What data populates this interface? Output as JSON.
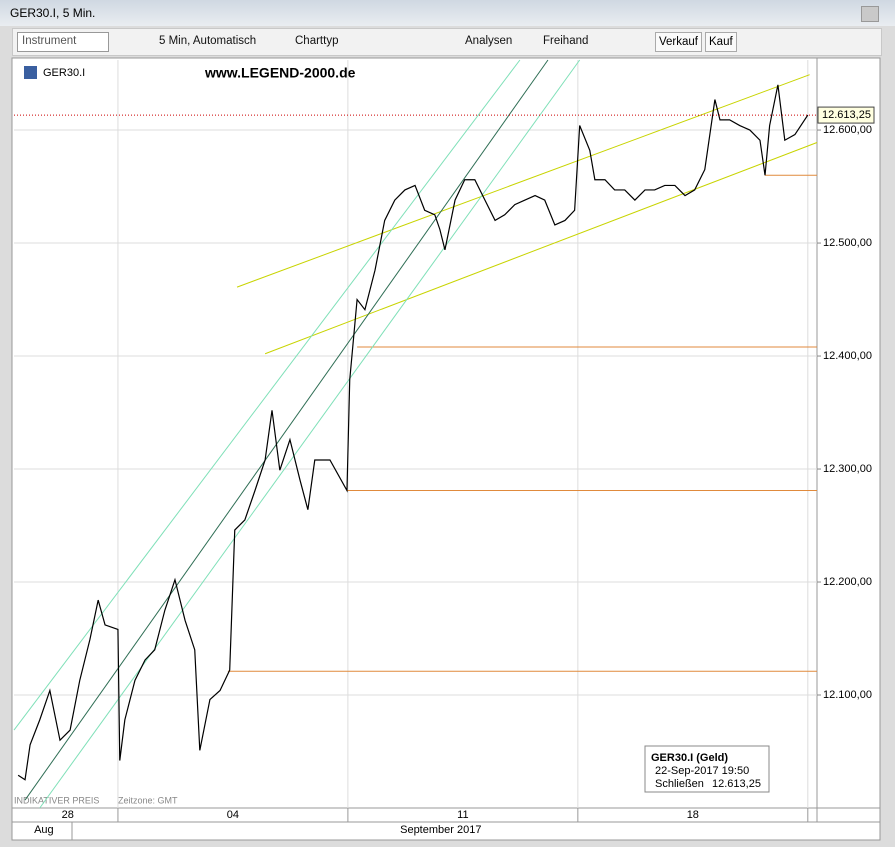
{
  "window": {
    "title": "GER30.I, 5 Min."
  },
  "toolbar": {
    "instrument_placeholder": "Instrument",
    "interval": "5 Min, Automatisch",
    "chart_type": "Charttyp",
    "analyses": "Analysen",
    "freehand": "Freihand",
    "sell": "Verkauf",
    "buy": "Kauf"
  },
  "chart_data": {
    "type": "line",
    "title": "www.LEGEND-2000.de",
    "x": [
      -2.17,
      -2.02,
      -1.91,
      -1.7,
      -1.48,
      -1.26,
      -1.04,
      -0.83,
      -0.61,
      -0.43,
      -0.28,
      0,
      0.04,
      0.15,
      0.37,
      0.59,
      0.8,
      1.02,
      1.24,
      1.46,
      1.67,
      1.78,
      2,
      2.22,
      2.43,
      2.54,
      2.76,
      2.98,
      3.2,
      3.35,
      3.52,
      3.74,
      3.96,
      4.13,
      4.28,
      4.61,
      4.98,
      5.04,
      5.2,
      5.37,
      5.59,
      5.8,
      6.02,
      6.24,
      6.46,
      6.67,
      6.89,
      7,
      7.11,
      7.33,
      7.54,
      7.76,
      7.98,
      8.2,
      8.41,
      8.63,
      8.85,
      9.07,
      9.28,
      9.5,
      9.72,
      9.93,
      10.04,
      10.26,
      10.37,
      10.59,
      10.8,
      11.02,
      11.24,
      11.46,
      11.67,
      11.89,
      12.11,
      12.33,
      12.54,
      12.76,
      12.98,
      13.09,
      13.3,
      13.52,
      13.74,
      13.96,
      14.07,
      14.17,
      14.35,
      14.5,
      14.72,
      15
    ],
    "series": [
      {
        "name": "GER30.I",
        "color": "#000000",
        "values": [
          12029,
          12025,
          12056,
          12078,
          12104,
          12060,
          12069,
          12113,
          12149,
          12184,
          12162,
          12158,
          12042,
          12078,
          12113,
          12131,
          12140,
          12175,
          12202,
          12166,
          12140,
          12051,
          12096,
          12104,
          12122,
          12246,
          12255,
          12281,
          12308,
          12352,
          12299,
          12326,
          12290,
          12264,
          12308,
          12308,
          12281,
          12379,
          12450,
          12441,
          12476,
          12520,
          12538,
          12547,
          12551,
          12529,
          12525,
          12512,
          12494,
          12538,
          12556,
          12556,
          12538,
          12520,
          12525,
          12534,
          12538,
          12542,
          12538,
          12516,
          12520,
          12529,
          12604,
          12582,
          12556,
          12556,
          12547,
          12547,
          12538,
          12547,
          12547,
          12551,
          12551,
          12542,
          12547,
          12565,
          12627,
          12609,
          12609,
          12604,
          12600,
          12591,
          12560,
          12604,
          12640,
          12591,
          12596,
          12613.25
        ]
      }
    ],
    "last_price_label": "12.613,25",
    "xlim": [
      -2.26,
      15.2
    ],
    "ylim": [
      12000,
      12662
    ],
    "yticks": [
      {
        "value": 12100,
        "label": "12.100,00"
      },
      {
        "value": 12200,
        "label": "12.200,00"
      },
      {
        "value": 12300,
        "label": "12.300,00"
      },
      {
        "value": 12400,
        "label": "12.400,00"
      },
      {
        "value": 12500,
        "label": "12.500,00"
      },
      {
        "value": 12600,
        "label": "12.600,00"
      }
    ],
    "xticks": [
      {
        "value": -1.09,
        "label": "28"
      },
      {
        "value": 2.5,
        "label": "04"
      },
      {
        "value": 7.5,
        "label": "11"
      },
      {
        "value": 12.5,
        "label": "18"
      }
    ],
    "month_ticks": [
      {
        "value": -1.61,
        "label": "Aug"
      },
      {
        "value": 7.02,
        "label": "September 2017"
      }
    ],
    "xgrid": [
      0,
      5,
      10,
      15
    ],
    "grid": true,
    "trend_lines": [
      {
        "color": "#c8d400",
        "x": [
          2.59,
          15.04
        ],
        "y": [
          12461,
          12649
        ]
      },
      {
        "color": "#c8d400",
        "x": [
          3.2,
          15.2
        ],
        "y": [
          12402,
          12589
        ]
      },
      {
        "color": "#2f6e55",
        "x": [
          -2.02,
          9.35
        ],
        "y": [
          12007,
          12662
        ]
      },
      {
        "color": "#7fe0b8",
        "x": [
          -2.26,
          8.74
        ],
        "y": [
          12069,
          12662
        ]
      },
      {
        "color": "#7fe0b8",
        "x": [
          -1.7,
          10.04
        ],
        "y": [
          12000,
          12662
        ]
      }
    ],
    "levels": [
      {
        "value": 12408,
        "from": 5.2,
        "color": "#e08a3c"
      },
      {
        "value": 12281,
        "from": 4.98,
        "color": "#e08a3c"
      },
      {
        "value": 12121,
        "from": 2.39,
        "color": "#e08a3c"
      },
      {
        "value": 12560,
        "from": 14.07,
        "color": "#e08a3c"
      }
    ],
    "footnote": "INDIKATIVER PREIS",
    "timezone": "Zeitzone: GMT",
    "info_box": {
      "title": "GER30.I (Geld)",
      "date": "22-Sep-2017 19:50",
      "close_label": "Schließen"
    }
  }
}
